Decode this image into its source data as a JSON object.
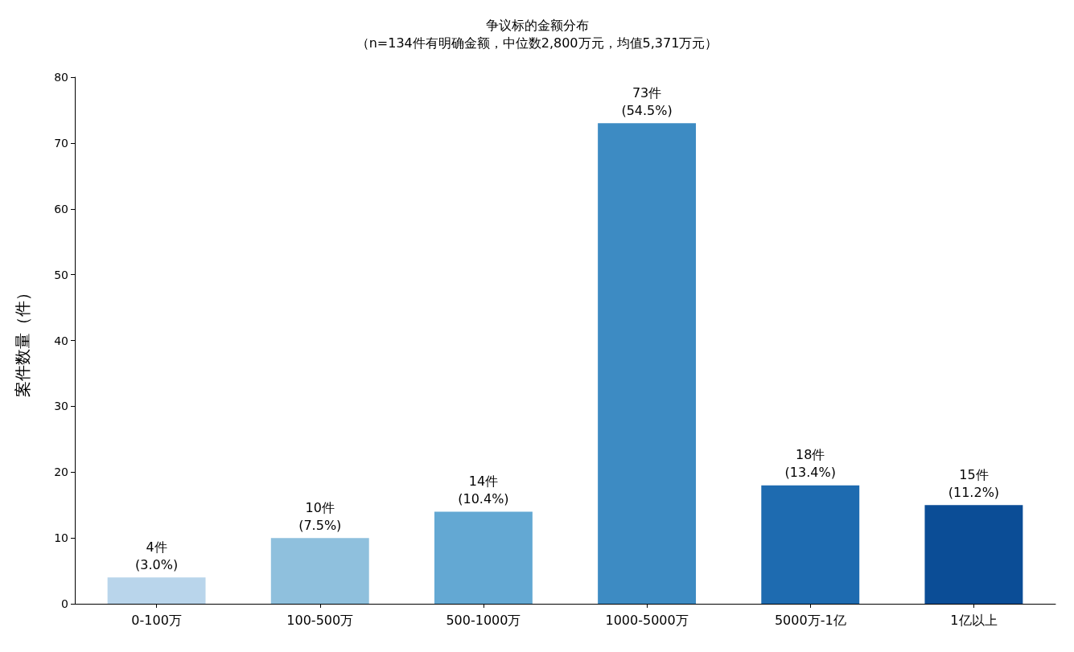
{
  "chart_data": {
    "type": "bar",
    "title": "争议标的金额分布",
    "subtitle": "（n=134件有明确金额，中位数2,800万元，均值5,371万元）",
    "ylabel": "案件数量（件）",
    "categories": [
      "0-100万",
      "100-500万",
      "500-1000万",
      "1000-5000万",
      "5000万-1亿",
      "1亿以上"
    ],
    "values": [
      4,
      10,
      14,
      73,
      18,
      15
    ],
    "colors": [
      "#b9d5eb",
      "#8fc0dd",
      "#63a8d3",
      "#3d8bc3",
      "#1e6bb0",
      "#0b4d96"
    ],
    "value_labels": [
      "4件\n(3.0%)",
      "10件\n(7.5%)",
      "14件\n(10.4%)",
      "73件\n(54.5%)",
      "18件\n(13.4%)",
      "15件\n(11.2%)"
    ],
    "ylim": [
      0,
      80
    ],
    "yticks": [
      0,
      10,
      20,
      30,
      40,
      50,
      60,
      70,
      80
    ],
    "grid": false
  }
}
